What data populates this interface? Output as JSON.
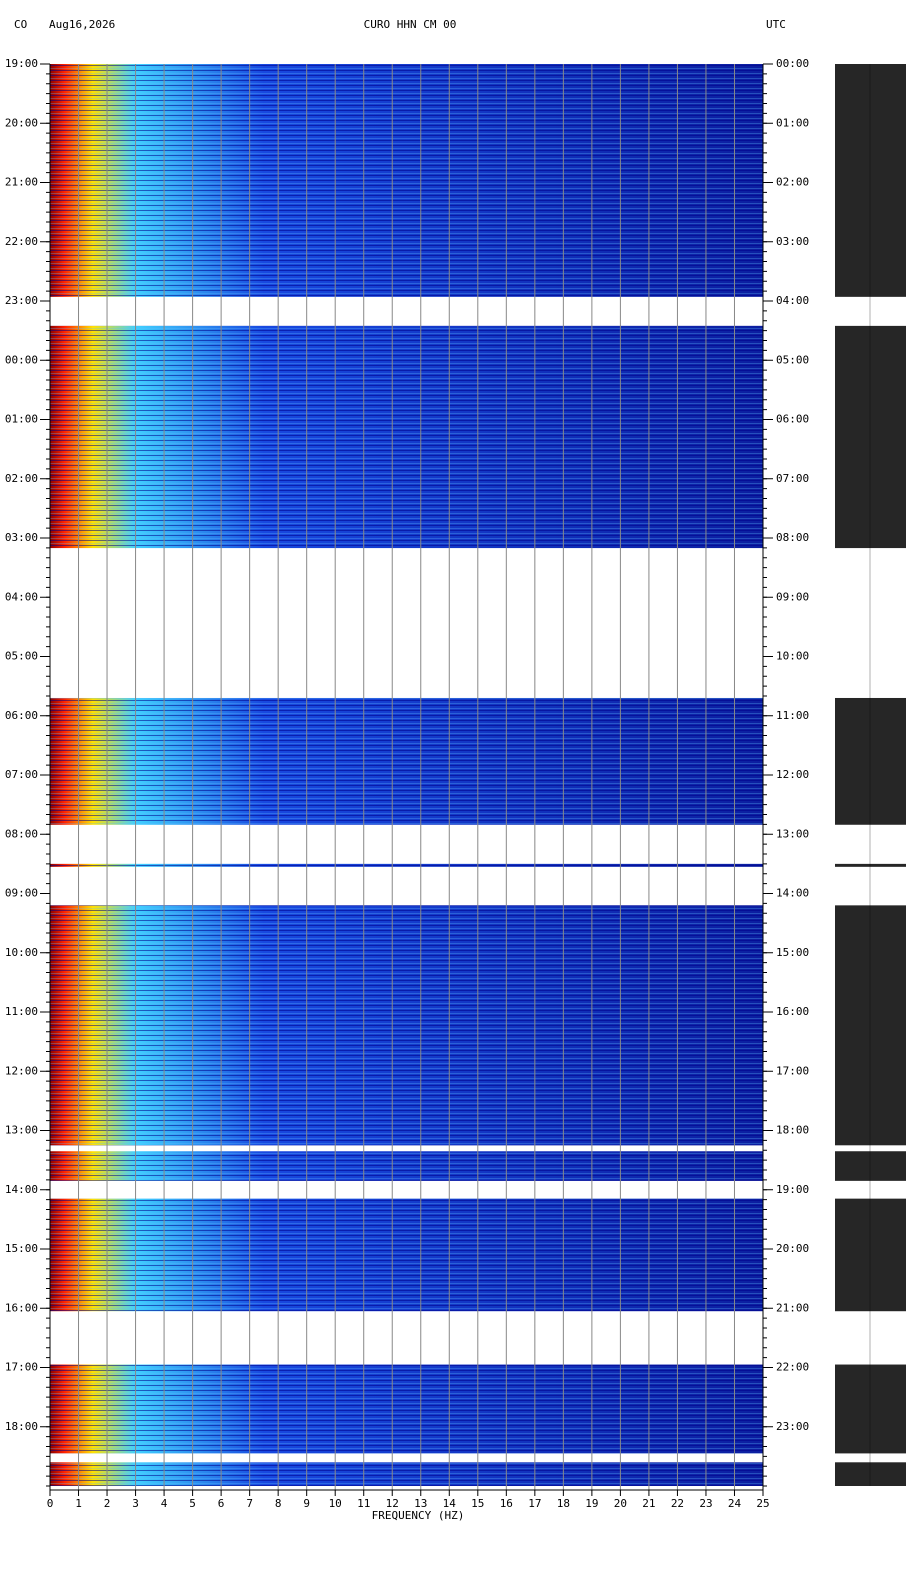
{
  "chart_data": {
    "type": "spectrogram",
    "network": "CO",
    "date": "Aug16,2026",
    "title": "CURO HHN CM 00",
    "timezone": "UTC",
    "xlabel": "FREQUENCY (HZ)",
    "xlim": [
      0,
      25
    ],
    "xticks": [
      0,
      1,
      2,
      3,
      4,
      5,
      6,
      7,
      8,
      9,
      10,
      11,
      12,
      13,
      14,
      15,
      16,
      17,
      18,
      19,
      20,
      21,
      22,
      23,
      24,
      25
    ],
    "ylim": [
      0,
      24
    ],
    "yticks": [
      {
        "value": 0,
        "label": "19:00"
      },
      {
        "value": 1,
        "label": "20:00"
      },
      {
        "value": 2,
        "label": "21:00"
      },
      {
        "value": 3,
        "label": "22:00"
      },
      {
        "value": 4,
        "label": "23:00"
      },
      {
        "value": 5,
        "label": "00:00"
      },
      {
        "value": 6,
        "label": "01:00"
      },
      {
        "value": 7,
        "label": "02:00"
      },
      {
        "value": 8,
        "label": "03:00"
      },
      {
        "value": 9,
        "label": "04:00"
      },
      {
        "value": 10,
        "label": "05:00"
      },
      {
        "value": 11,
        "label": "06:00"
      },
      {
        "value": 12,
        "label": "07:00"
      },
      {
        "value": 13,
        "label": "08:00"
      },
      {
        "value": 14,
        "label": "09:00"
      },
      {
        "value": 15,
        "label": "10:00"
      },
      {
        "value": 16,
        "label": "11:00"
      },
      {
        "value": 17,
        "label": "12:00"
      },
      {
        "value": 18,
        "label": "13:00"
      },
      {
        "value": 19,
        "label": "14:00"
      },
      {
        "value": 20,
        "label": "15:00"
      },
      {
        "value": 21,
        "label": "16:00"
      },
      {
        "value": 22,
        "label": "17:00"
      },
      {
        "value": 23,
        "label": "18:00"
      }
    ],
    "y2ticks": [
      {
        "value": 0,
        "label": "00:00"
      },
      {
        "value": 1,
        "label": "01:00"
      },
      {
        "value": 2,
        "label": "02:00"
      },
      {
        "value": 3,
        "label": "03:00"
      },
      {
        "value": 4,
        "label": "04:00"
      },
      {
        "value": 5,
        "label": "05:00"
      },
      {
        "value": 6,
        "label": "06:00"
      },
      {
        "value": 7,
        "label": "07:00"
      },
      {
        "value": 8,
        "label": "08:00"
      },
      {
        "value": 9,
        "label": "09:00"
      },
      {
        "value": 10,
        "label": "10:00"
      },
      {
        "value": 11,
        "label": "11:00"
      },
      {
        "value": 12,
        "label": "12:00"
      },
      {
        "value": 13,
        "label": "13:00"
      },
      {
        "value": 14,
        "label": "14:00"
      },
      {
        "value": 15,
        "label": "15:00"
      },
      {
        "value": 16,
        "label": "16:00"
      },
      {
        "value": 17,
        "label": "17:00"
      },
      {
        "value": 18,
        "label": "18:00"
      },
      {
        "value": 19,
        "label": "19:00"
      },
      {
        "value": 20,
        "label": "20:00"
      },
      {
        "value": 21,
        "label": "21:00"
      },
      {
        "value": 22,
        "label": "22:00"
      },
      {
        "value": 23,
        "label": "23:00"
      }
    ],
    "segments": [
      [
        0,
        3.93
      ],
      [
        4.42,
        8.17
      ],
      [
        10.7,
        12.84
      ],
      [
        13.5,
        13.55
      ],
      [
        14.2,
        18.25
      ],
      [
        18.35,
        18.85
      ],
      [
        19.15,
        21.05
      ],
      [
        21.95,
        23.45
      ],
      [
        23.6,
        24
      ]
    ]
  }
}
